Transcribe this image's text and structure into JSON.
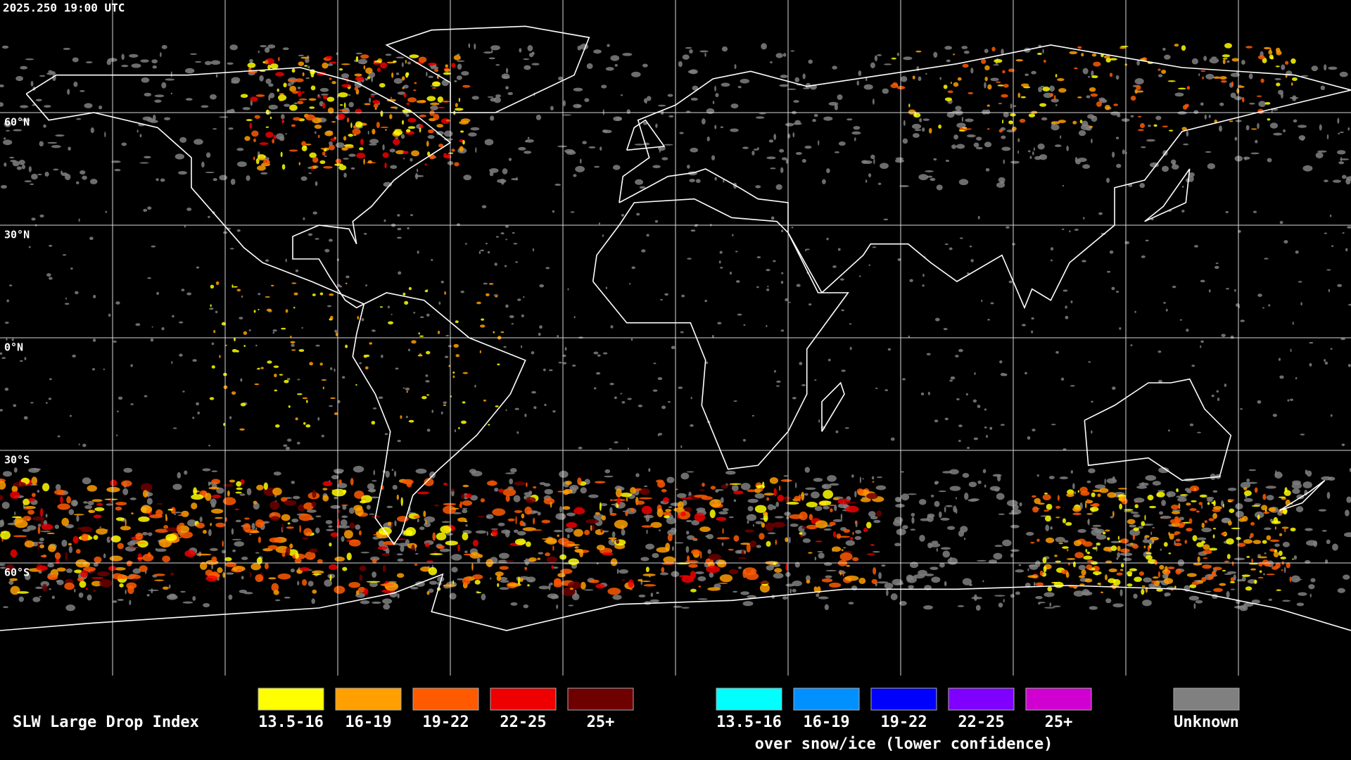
{
  "timestamp": "2025.250 19:00 UTC",
  "lat_labels": [
    "60°N",
    "30°N",
    "0°N",
    "30°S",
    "60°S"
  ],
  "legend": {
    "title": "SLW Large Drop Index",
    "groups": [
      {
        "items": [
          {
            "label": "13.5-16",
            "color": "#ffff00"
          },
          {
            "label": "16-19",
            "color": "#ff9f00"
          },
          {
            "label": "19-22",
            "color": "#ff5a00"
          },
          {
            "label": "22-25",
            "color": "#ee0000"
          },
          {
            "label": "25+",
            "color": "#6e0000"
          }
        ]
      },
      {
        "items": [
          {
            "label": "13.5-16",
            "color": "#00ffff"
          },
          {
            "label": "16-19",
            "color": "#0090ff"
          },
          {
            "label": "19-22",
            "color": "#0000ff"
          },
          {
            "label": "22-25",
            "color": "#8000ff"
          },
          {
            "label": "25+",
            "color": "#d000d0"
          }
        ],
        "caption": "over snow/ice (lower confidence)"
      },
      {
        "items": [
          {
            "label": "Unknown",
            "color": "#808080"
          }
        ]
      }
    ]
  }
}
